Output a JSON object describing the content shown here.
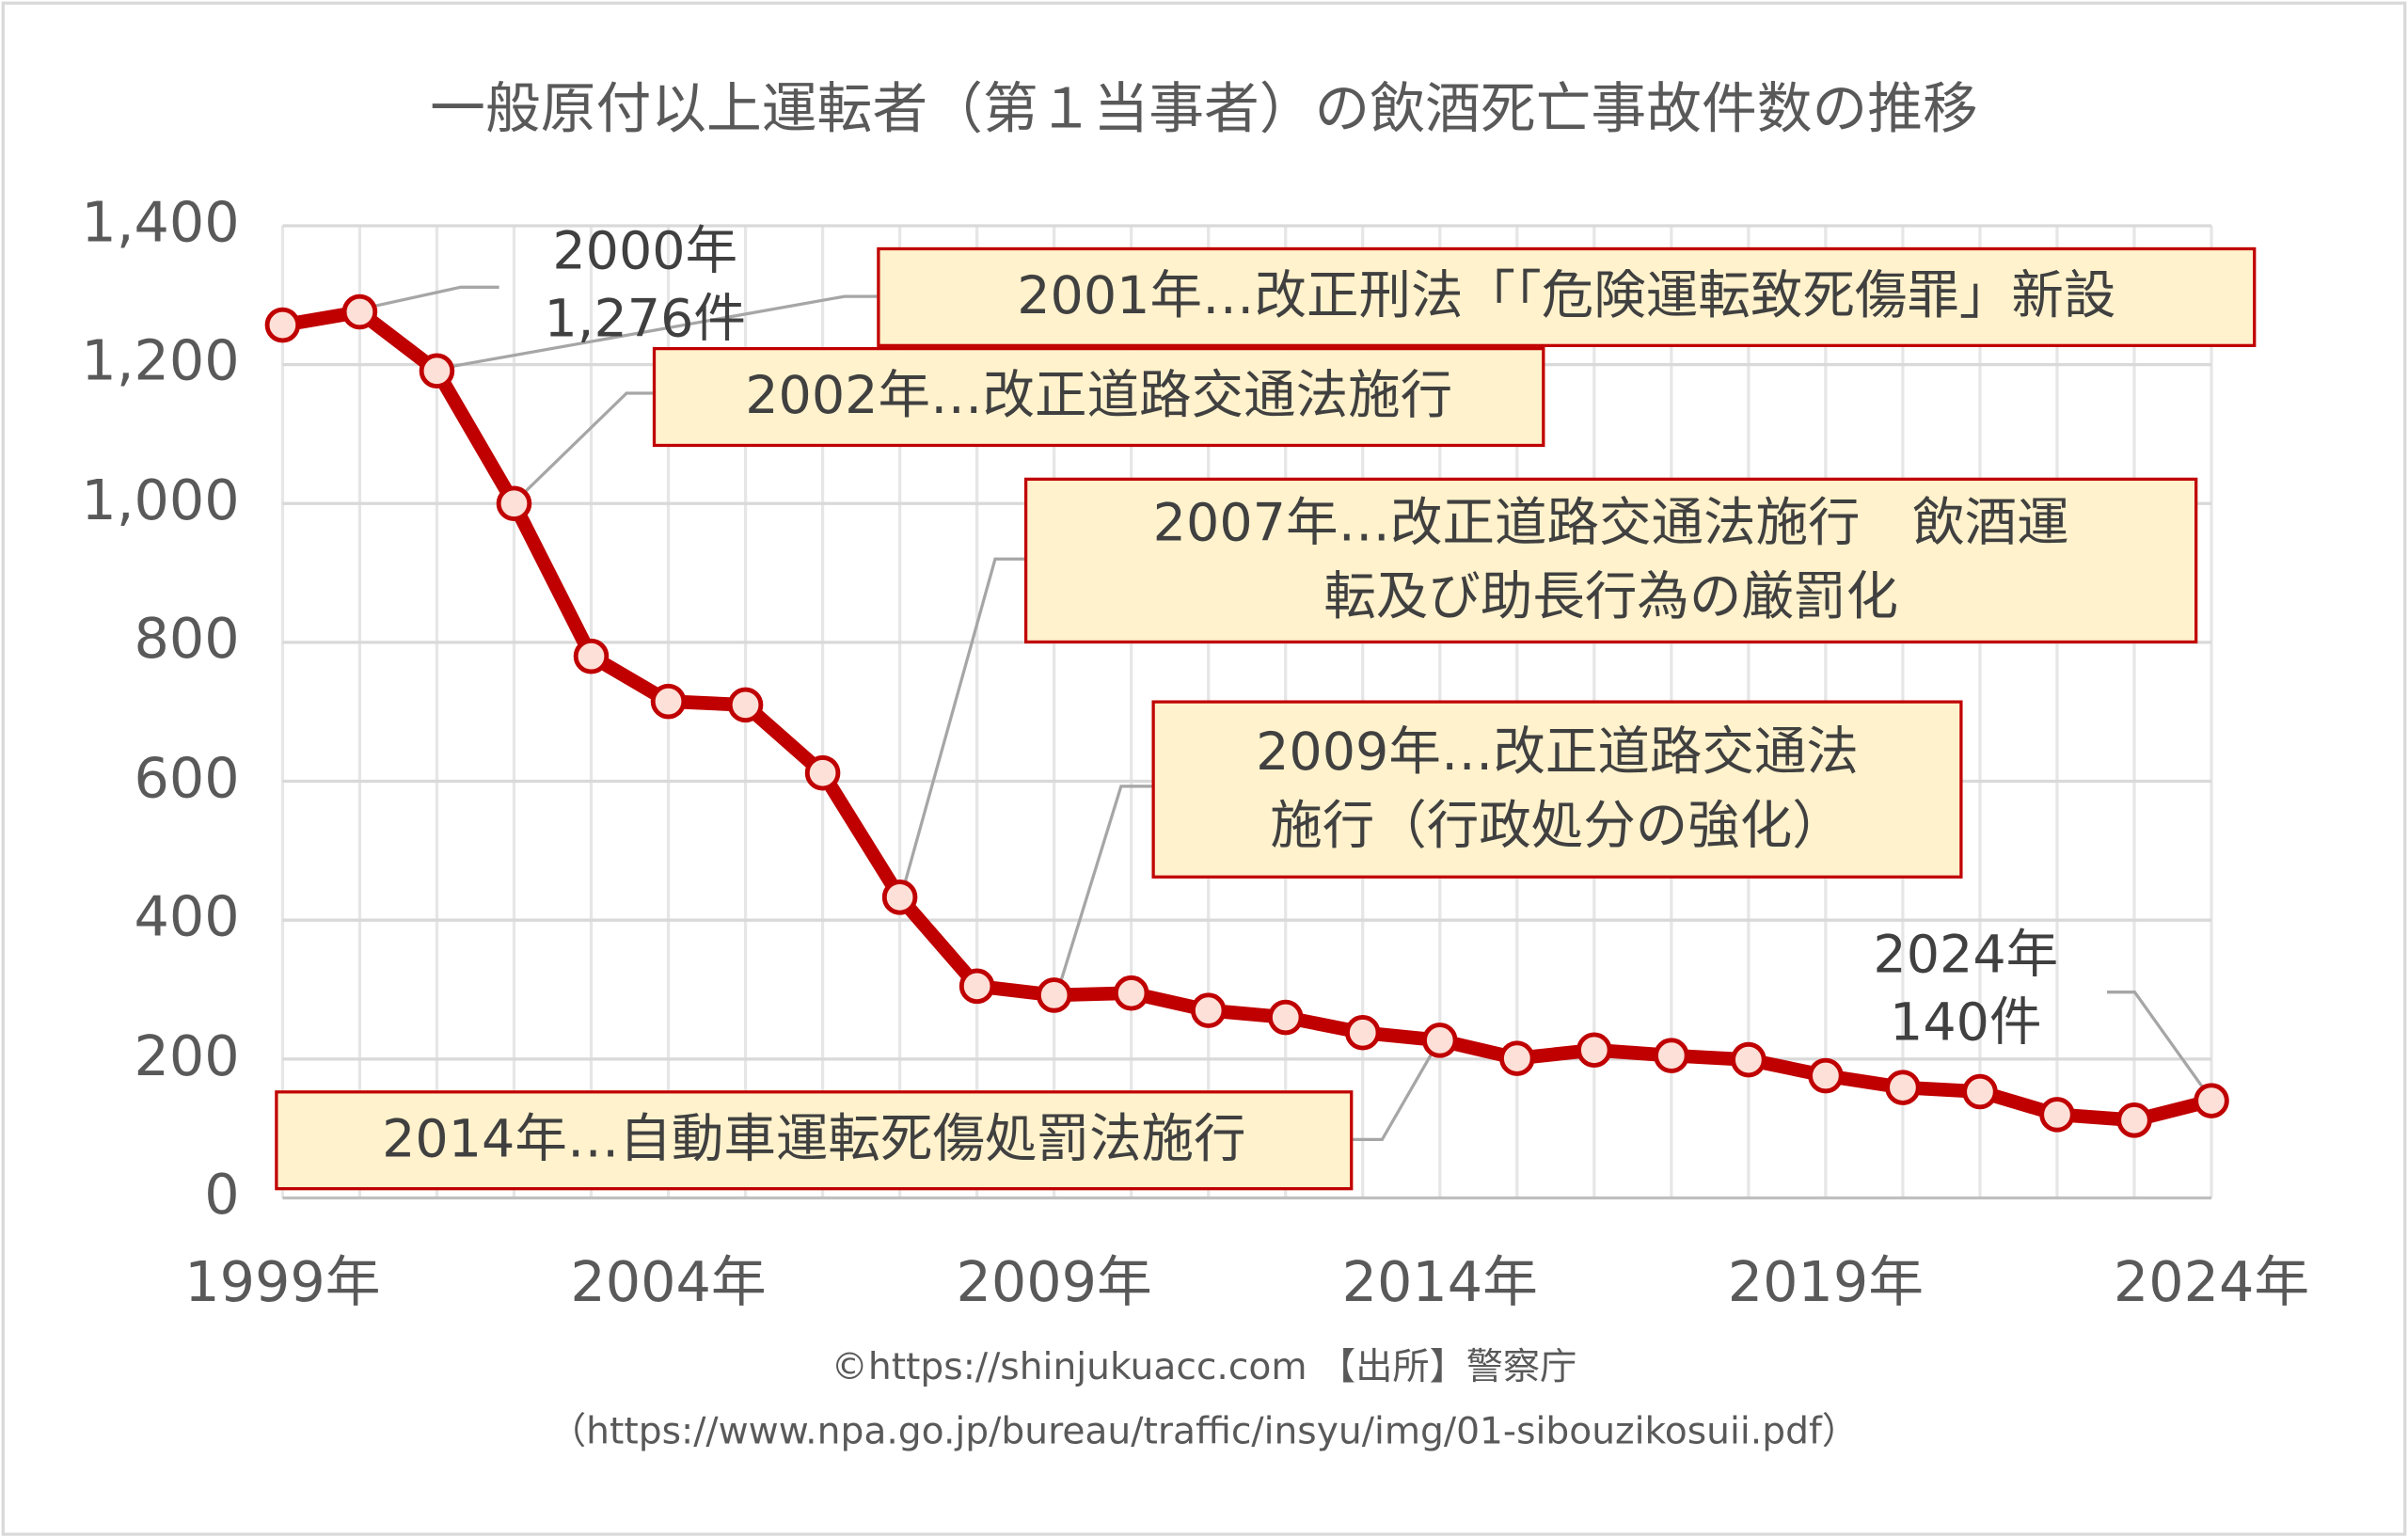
{
  "chart_data": {
    "type": "line",
    "title": "一般原付以上運転者（第１当事者）の飲酒死亡事故件数の推移",
    "xlabel": "",
    "ylabel": "",
    "ylim": [
      0,
      1400
    ],
    "yticks": [
      "0",
      "200",
      "400",
      "600",
      "800",
      "1,000",
      "1,200",
      "1,400"
    ],
    "xticks": [
      "1999年",
      "2004年",
      "2009年",
      "2014年",
      "2019年",
      "2024年"
    ],
    "grid": true,
    "series": [
      {
        "name": "飲酒死亡事故件数",
        "color": "#c00000",
        "marker_fill": "#fde0d8",
        "x": [
          1999,
          2000,
          2001,
          2002,
          2003,
          2004,
          2005,
          2006,
          2007,
          2008,
          2009,
          2010,
          2011,
          2012,
          2013,
          2014,
          2015,
          2016,
          2017,
          2018,
          2019,
          2020,
          2021,
          2022,
          2023,
          2024
        ],
        "values": [
          1257,
          1276,
          1191,
          1000,
          780,
          715,
          710,
          612,
          433,
          305,
          292,
          295,
          270,
          260,
          238,
          227,
          201,
          213,
          205,
          199,
          176,
          159,
          153,
          120,
          112,
          140
        ]
      }
    ],
    "annotations": {
      "a2000": [
        "2000年",
        "1,276件"
      ],
      "a2024": [
        "2024年",
        "140件"
      ],
      "a2001": "2001年…改正刑法「「危険運転致死傷罪」新設",
      "a2002": "2002年…改正道路交通法施行",
      "a2007": [
        "2007年…改正道路交通法施行　飲酒運",
        "転及び助長行為の厳罰化"
      ],
      "a2009": [
        "2009年…改正道路交通法",
        "施行（行政処分の強化）"
      ],
      "a2014": "2014年…自動車運転死傷処罰法施行"
    }
  },
  "footer": {
    "line1": "©https://shinjukuacc.com 【出所】警察庁",
    "line2": "（https://www.npa.go.jp/bureau/traffic/insyu/img/01-sibouzikosuii.pdf）"
  }
}
